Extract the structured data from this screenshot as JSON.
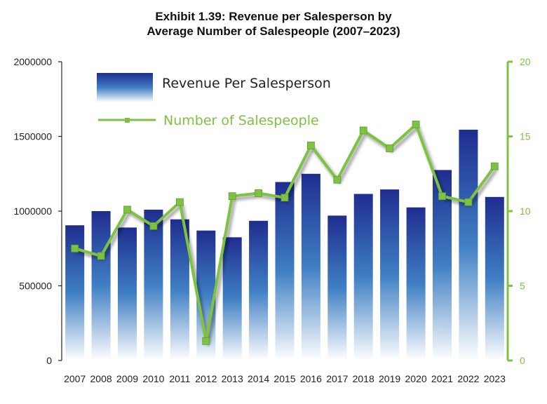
{
  "title_line1": "Exhibit 1.39: Revenue per Salesperson by",
  "title_line2": "Average Number of Salespeople (2007–2023)",
  "colors": {
    "bar_top": "#1f2d8f",
    "bar_mid": "#3f7fc4",
    "bar_bottom": "#ffffff",
    "line": "#7dc242",
    "right_axis": "#7dc242",
    "left_axis": "#222222"
  },
  "chart_data": {
    "type": "bar",
    "categories": [
      "2007",
      "2008",
      "2009",
      "2010",
      "2011",
      "2012",
      "2013",
      "2014",
      "2015",
      "2016",
      "2017",
      "2018",
      "2019",
      "2020",
      "2021",
      "2022",
      "2023"
    ],
    "series": [
      {
        "name": "Revenue Per Salesperson",
        "type": "bar",
        "axis": "left",
        "values": [
          905000,
          1000000,
          890000,
          1010000,
          945000,
          870000,
          825000,
          935000,
          1195000,
          1250000,
          970000,
          1115000,
          1145000,
          1025000,
          1275000,
          1545000,
          1095000
        ]
      },
      {
        "name": "Number of Salespeople",
        "type": "line",
        "axis": "right",
        "values": [
          7.5,
          7.0,
          10.1,
          9.0,
          10.6,
          1.3,
          11.0,
          11.2,
          10.9,
          14.4,
          12.1,
          15.4,
          14.2,
          15.8,
          11.0,
          10.6,
          13.0
        ]
      }
    ],
    "left_axis": {
      "ylim": [
        0,
        2000000
      ],
      "ticks": [
        "0",
        "500000",
        "1000000",
        "1500000",
        "2000000"
      ]
    },
    "right_axis": {
      "ylim": [
        0,
        20
      ],
      "ticks": [
        "0",
        "5",
        "10",
        "15",
        "20"
      ]
    },
    "legend_position": "top-left",
    "grid": false
  }
}
